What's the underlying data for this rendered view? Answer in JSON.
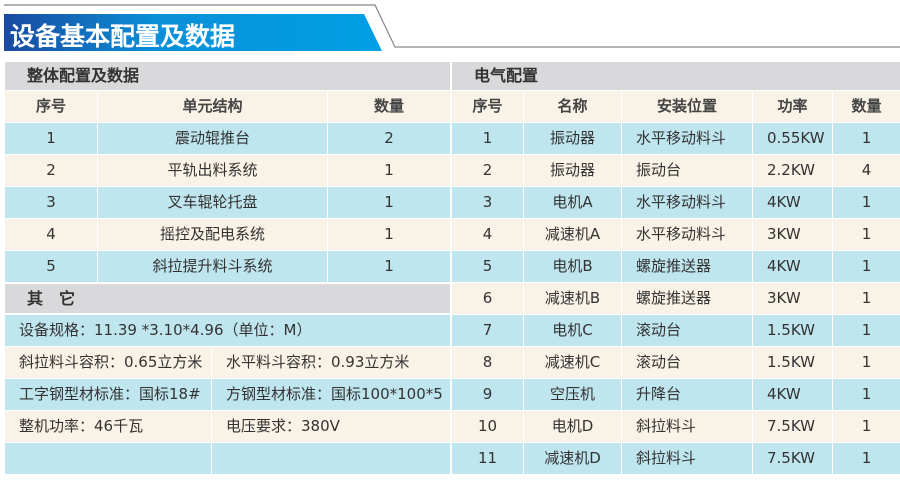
{
  "title": "设备基本配置及数据",
  "colors": {
    "banner": "#00a0e4",
    "row_blue": "#bfe5ee",
    "row_cream": "#f9f2e6",
    "section": "#d9d9db"
  },
  "overall": {
    "heading": "整体配置及数据",
    "columns": [
      "序号",
      "单元结构",
      "数量"
    ],
    "rows": [
      [
        "1",
        "震动辊推台",
        "2"
      ],
      [
        "2",
        "平轨出料系统",
        "1"
      ],
      [
        "3",
        "叉车辊轮托盘",
        "1"
      ],
      [
        "4",
        "摇控及配电系统",
        "1"
      ],
      [
        "5",
        "斜拉提升料斗系统",
        "1"
      ]
    ]
  },
  "other": {
    "heading": "其　它",
    "spec": "设备规格：11.39 *3.10*4.96（单位：M）",
    "rows": [
      [
        "斜拉料斗容积：0.65立方米",
        "水平料斗容积：0.93立方米"
      ],
      [
        "工字钢型材标准：国标18#",
        "方钢型材标准：国标100*100*5"
      ],
      [
        "整机功率：46千瓦",
        "电压要求：380V"
      ],
      [
        "",
        ""
      ]
    ]
  },
  "electric": {
    "heading": "电气配置",
    "columns": [
      "序号",
      "名称",
      "安装位置",
      "功率",
      "数量"
    ],
    "rows": [
      [
        "1",
        "振动器",
        "水平移动料斗",
        "0.55KW",
        "1"
      ],
      [
        "2",
        "振动器",
        "振动台",
        "2.2KW",
        "4"
      ],
      [
        "3",
        "电机A",
        "水平移动料斗",
        "4KW",
        "1"
      ],
      [
        "4",
        "减速机A",
        "水平移动料斗",
        "3KW",
        "1"
      ],
      [
        "5",
        "电机B",
        "螺旋推送器",
        "4KW",
        "1"
      ],
      [
        "6",
        "减速机B",
        "螺旋推送器",
        "3KW",
        "1"
      ],
      [
        "7",
        "电机C",
        "滚动台",
        "1.5KW",
        "1"
      ],
      [
        "8",
        "减速机C",
        "滚动台",
        "1.5KW",
        "1"
      ],
      [
        "9",
        "空压机",
        "升降台",
        "4KW",
        "1"
      ],
      [
        "10",
        "电机D",
        "斜拉料斗",
        "7.5KW",
        "1"
      ],
      [
        "11",
        "减速机D",
        "斜拉料斗",
        "7.5KW",
        "1"
      ]
    ]
  }
}
